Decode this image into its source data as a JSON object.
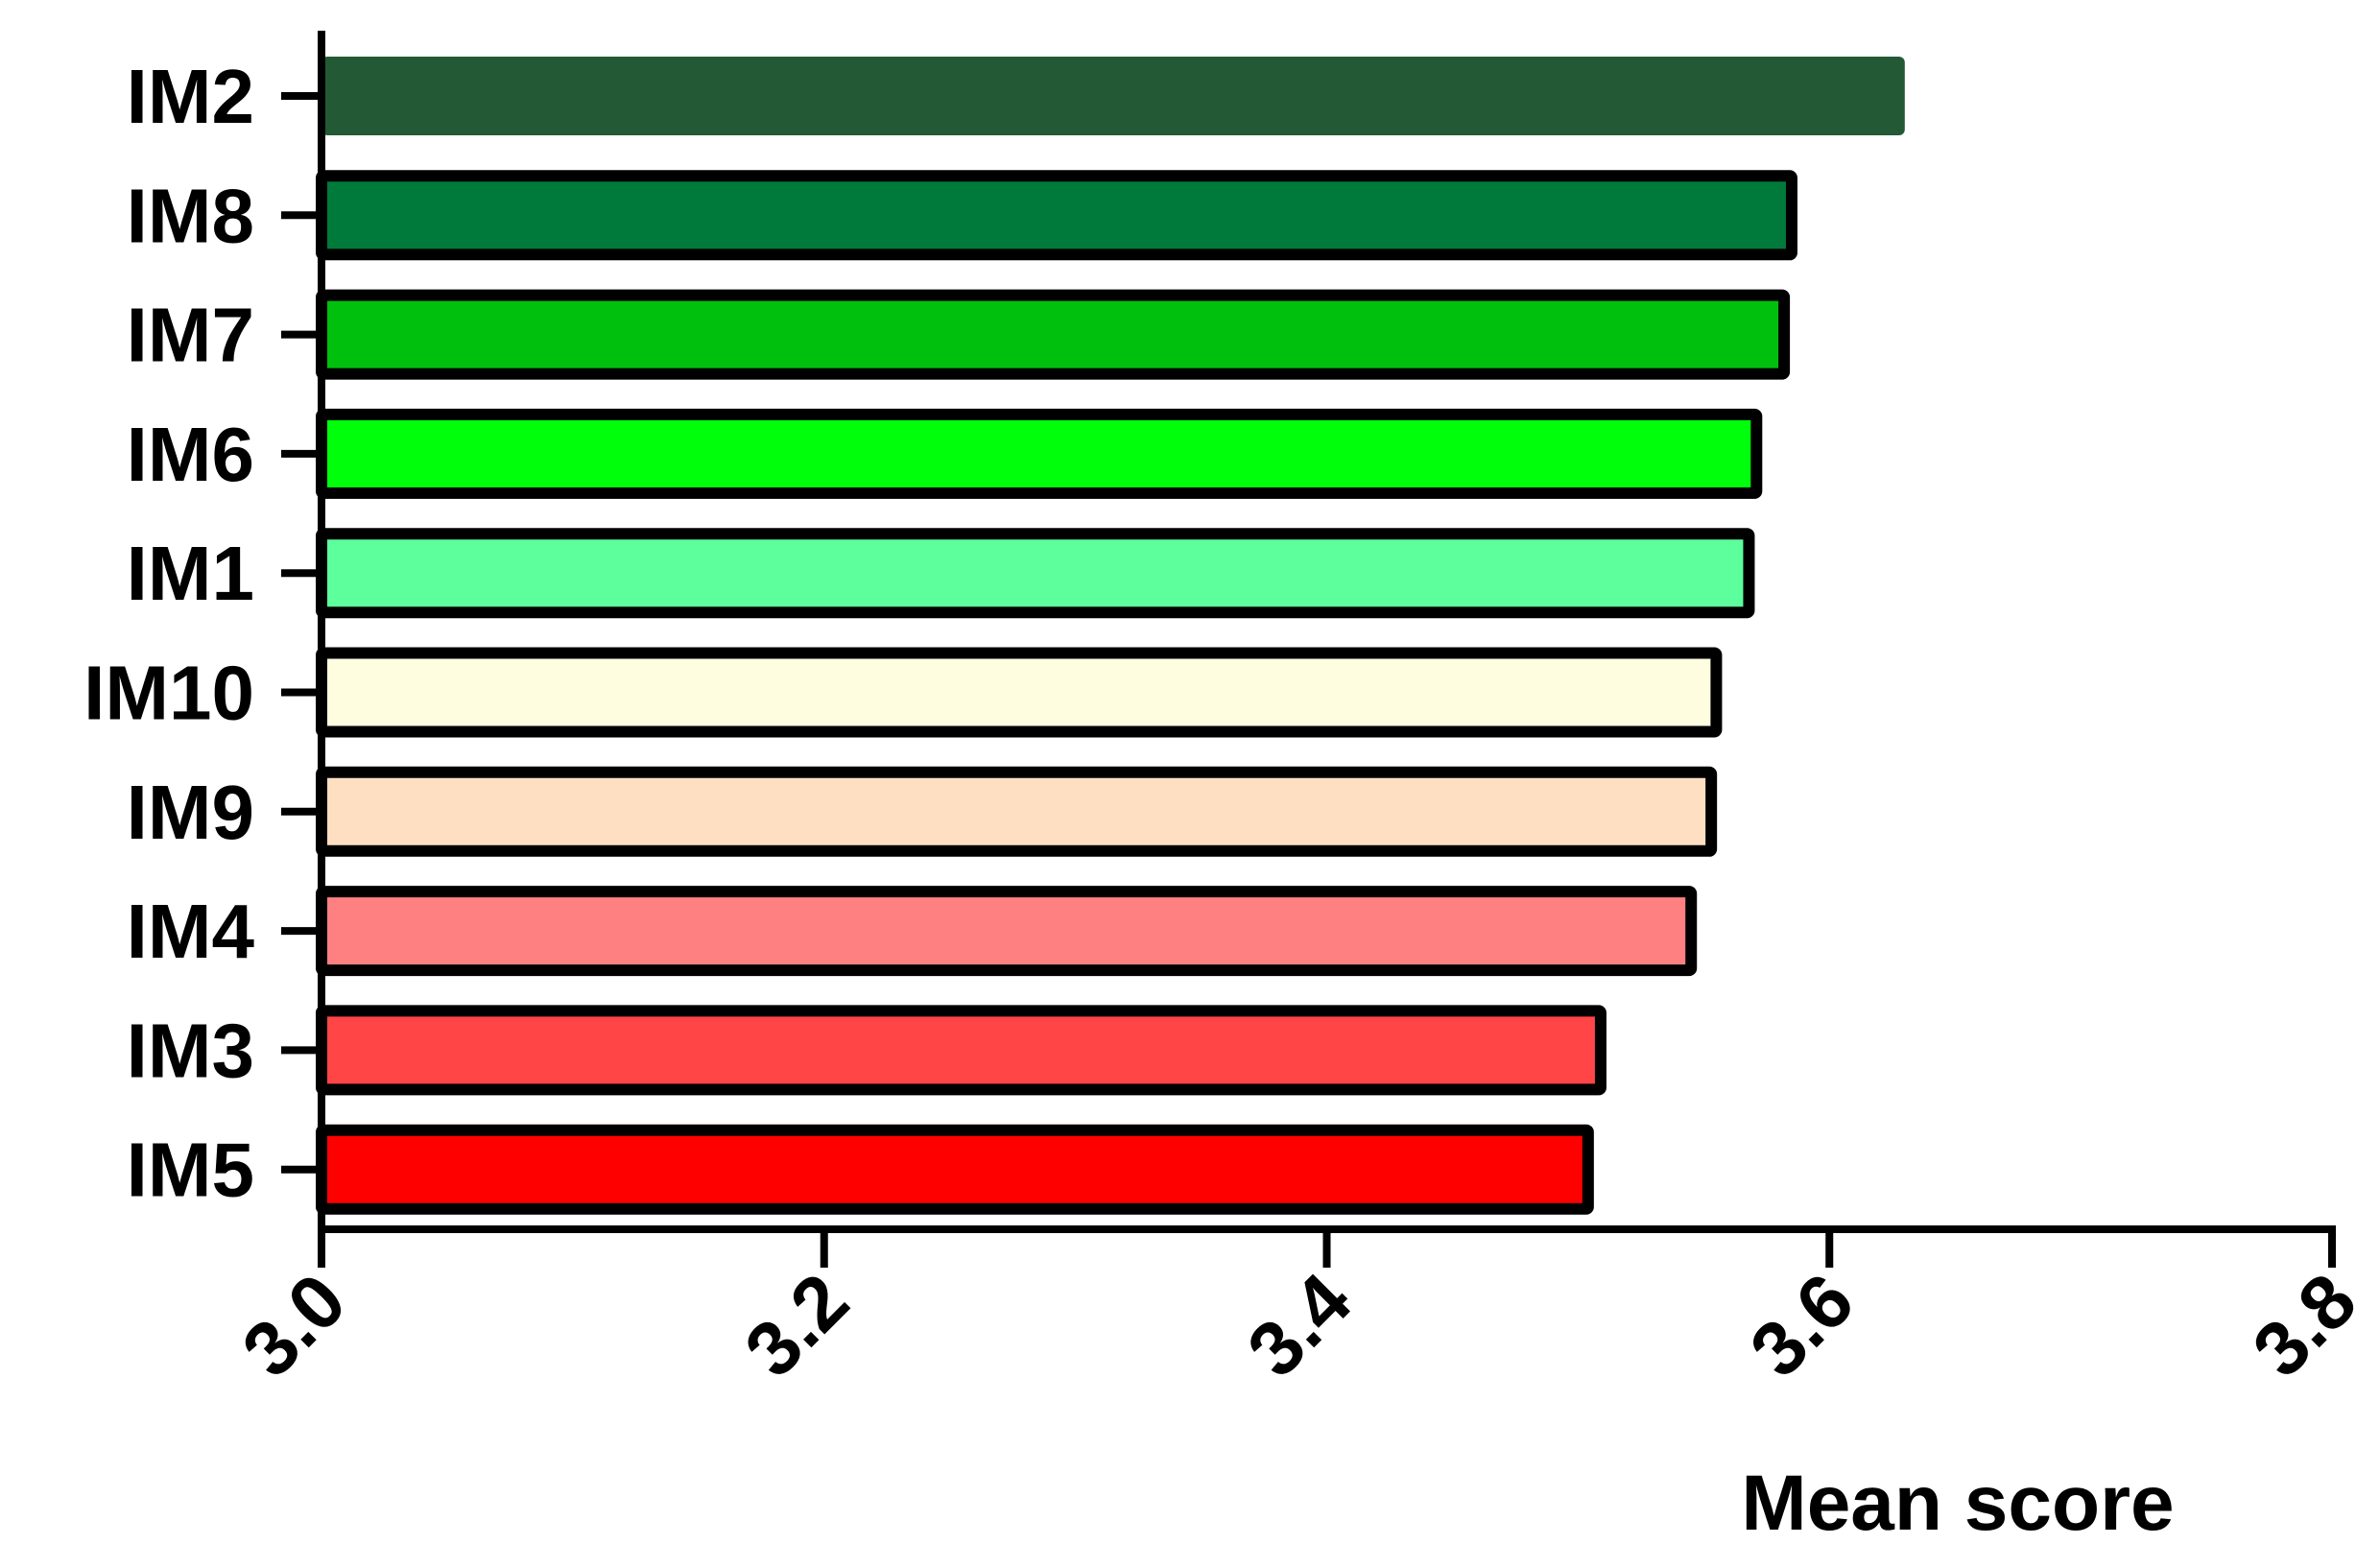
{
  "chart_data": {
    "type": "bar",
    "orientation": "horizontal",
    "x_label": "Mean score",
    "categories": [
      "IM2",
      "IM8",
      "IM7",
      "IM6",
      "IM1",
      "IM10",
      "IM9",
      "IM4",
      "IM3",
      "IM5"
    ],
    "values": [
      3.63,
      3.585,
      3.582,
      3.571,
      3.568,
      3.555,
      3.553,
      3.545,
      3.509,
      3.504
    ],
    "colors": [
      "#235a35",
      "#007a3a",
      "#00c00e",
      "#00ff0a",
      "#5cff9c",
      "#fffde0",
      "#ffdfc2",
      "#ff8080",
      "#ff4545",
      "#ff0000"
    ],
    "edge_colors": [
      "none",
      "#000000",
      "#000000",
      "#000000",
      "#000000",
      "#000000",
      "#000000",
      "#000000",
      "#000000",
      "#000000"
    ],
    "xlim": [
      3,
      3.8
    ],
    "xticks": [
      {
        "value": 3,
        "label": "3.0"
      },
      3.2,
      3.4,
      3.6,
      3.8
    ],
    "grid": false
  }
}
